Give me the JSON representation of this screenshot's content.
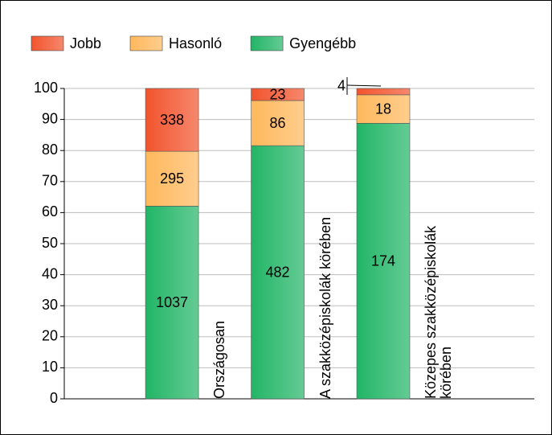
{
  "chart_data": {
    "type": "bar",
    "stacking": "percent",
    "categories": [
      "Országosan",
      "A szakközépiskolák körében",
      "Közepes szakközépiskolák körében"
    ],
    "series": [
      {
        "name": "Jobb",
        "color": "#f2542d",
        "values": [
          338,
          23,
          4
        ]
      },
      {
        "name": "Hasonló",
        "color": "#ffb85c",
        "values": [
          295,
          86,
          18
        ]
      },
      {
        "name": "Gyengébb",
        "color": "#22b566",
        "values": [
          1037,
          482,
          174
        ]
      }
    ],
    "ylim": [
      0,
      100
    ],
    "yticks": [
      0,
      10,
      20,
      30,
      40,
      50,
      60,
      70,
      80,
      90,
      100
    ],
    "grid": true
  }
}
